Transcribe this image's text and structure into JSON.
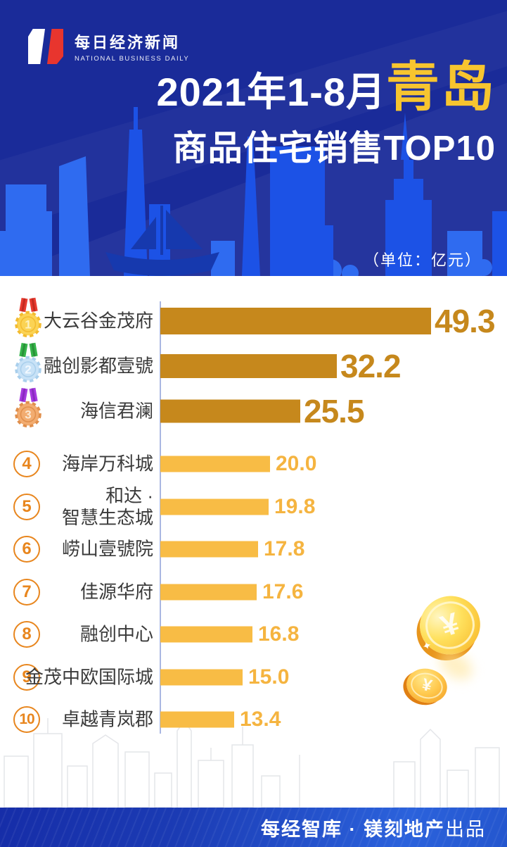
{
  "brand": {
    "logo_cn": "每日经济新闻",
    "logo_en": "NATIONAL BUSINESS DAILY"
  },
  "header": {
    "title_prefix": "2021年1-8月",
    "title_city": "青岛",
    "title_line2": "商品住宅销售TOP10",
    "unit_label": "（单位：亿元）"
  },
  "footer": {
    "producer": "每经智库 · 镁刻地产",
    "suffix": "出品"
  },
  "colors": {
    "header_bg": "#1A2B99",
    "skyline_bright": "#1C52E6",
    "skyline_light": "#2F6BF0",
    "boat_dark": "#1639AE",
    "bar_top3": "#C6881C",
    "bar_rest": "#F8BC45",
    "value_rest": "#F5B440",
    "title_city_gold": "#F7C52F",
    "rank_circle": "#E8861E",
    "axis_line": "#A9B7E2",
    "label_text": "#3A3A3A",
    "footer_left": "#162DA8",
    "footer_right": "#2B62DC",
    "coin_gold": "#FFD34E",
    "watermark_line": "#E4E5E9"
  },
  "chart_data": {
    "type": "bar",
    "orientation": "horizontal",
    "title": "2021年1-8月青岛商品住宅销售TOP10",
    "unit": "亿元",
    "xlim": [
      0,
      55
    ],
    "grid": false,
    "legend": false,
    "categories": [
      "大云谷金茂府",
      "融创影都壹號",
      "海信君澜",
      "海岸万科城",
      "和达·智慧生态城",
      "崂山壹號院",
      "佳源华府",
      "融创中心",
      "金茂中欧国际城",
      "卓越青岚郡"
    ],
    "values": [
      49.3,
      32.2,
      25.5,
      20.0,
      19.8,
      17.8,
      17.6,
      16.8,
      15.0,
      13.4
    ],
    "rows": [
      {
        "rank": 1,
        "label_lines": [
          "大云谷金茂府"
        ],
        "value": 49.3,
        "value_label": "49.3"
      },
      {
        "rank": 2,
        "label_lines": [
          "融创影都壹號"
        ],
        "value": 32.2,
        "value_label": "32.2"
      },
      {
        "rank": 3,
        "label_lines": [
          "海信君澜"
        ],
        "value": 25.5,
        "value_label": "25.5"
      },
      {
        "rank": 4,
        "label_lines": [
          "海岸万科城"
        ],
        "value": 20.0,
        "value_label": "20.0"
      },
      {
        "rank": 5,
        "label_lines": [
          "和达 ·",
          "智慧生态城"
        ],
        "value": 19.8,
        "value_label": "19.8"
      },
      {
        "rank": 6,
        "label_lines": [
          "崂山壹號院"
        ],
        "value": 17.8,
        "value_label": "17.8"
      },
      {
        "rank": 7,
        "label_lines": [
          "佳源华府"
        ],
        "value": 17.6,
        "value_label": "17.6"
      },
      {
        "rank": 8,
        "label_lines": [
          "融创中心"
        ],
        "value": 16.8,
        "value_label": "16.8"
      },
      {
        "rank": 9,
        "label_lines": [
          "金茂中欧国际城"
        ],
        "value": 15.0,
        "value_label": "15.0"
      },
      {
        "rank": 10,
        "label_lines": [
          "卓越青岚郡"
        ],
        "value": 13.4,
        "value_label": "13.4"
      }
    ],
    "medals": [
      {
        "rank": 1,
        "name": "gold-medal",
        "body": "#FBD354",
        "edge": "#F3BB2F",
        "ribbon": "#E93B2F",
        "ribbon_dark": "#C22A20",
        "num": "#FDF2C0"
      },
      {
        "rank": 2,
        "name": "silver-medal",
        "body": "#C8E2F7",
        "edge": "#A9CFEC",
        "ribbon": "#35B54A",
        "ribbon_dark": "#2A9139",
        "num": "#F2F9FF"
      },
      {
        "rank": 3,
        "name": "bronze-medal",
        "body": "#F2AC70",
        "edge": "#E08F4C",
        "ribbon": "#A73BE0",
        "ribbon_dark": "#8A2BC0",
        "num": "#FBE8D2"
      }
    ]
  }
}
